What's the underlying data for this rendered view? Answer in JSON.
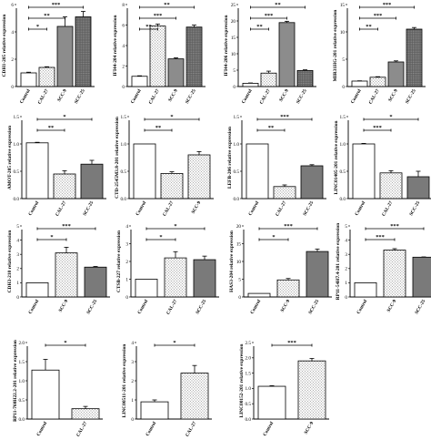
{
  "figure": {
    "colors": {
      "ink": "#000000",
      "background": "#ffffff"
    },
    "patterns": {
      "Control": "white",
      "CAL-27": "light-dots",
      "SCC-9_row1": "solid-gray",
      "SCC-9": "light-dots",
      "SCC-25_row1": "dense-dots",
      "SCC-25": "dark-gray"
    }
  },
  "chart_data": [
    {
      "type": "bar",
      "ylabel": "CDH1-205 relative expression",
      "categories": [
        "Control",
        "CAL-27",
        "SCC-9",
        "SCC-25"
      ],
      "values": [
        1.0,
        1.4,
        4.4,
        5.1
      ],
      "errors": [
        0.05,
        0.05,
        0.7,
        0.4
      ],
      "ylim": [
        0,
        6
      ],
      "yticks": [
        "0",
        "2",
        "4",
        "6"
      ],
      "brackets": [
        {
          "from": 0,
          "to": 1,
          "label": "*"
        },
        {
          "from": 0,
          "to": 2,
          "label": "**"
        },
        {
          "from": 0,
          "to": 3,
          "label": "***"
        }
      ]
    },
    {
      "type": "bar",
      "ylabel": "IFI44-204 relative expression",
      "categories": [
        "Control",
        "CAL-27",
        "SCC-9",
        "SCC-25"
      ],
      "values": [
        1.0,
        5.9,
        2.7,
        5.8
      ],
      "errors": [
        0.05,
        0.2,
        0.1,
        0.2
      ],
      "ylim": [
        0,
        8
      ],
      "yticks": [
        "0",
        "2",
        "4",
        "6",
        "8"
      ],
      "brackets": [
        {
          "from": 0,
          "to": 1,
          "label": "**"
        },
        {
          "from": 0,
          "to": 2,
          "label": "***"
        },
        {
          "from": 0,
          "to": 3,
          "label": "**"
        }
      ]
    },
    {
      "type": "bar",
      "ylabel": "IFI44-206 relative expression",
      "categories": [
        "Control",
        "CAL-27",
        "SCC-9",
        "SCC-25"
      ],
      "values": [
        1.0,
        4.1,
        19.5,
        4.9
      ],
      "errors": [
        0.1,
        0.6,
        0.4,
        0.2
      ],
      "ylim": [
        0,
        25
      ],
      "yticks": [
        "0",
        "5",
        "10",
        "15",
        "20",
        "25"
      ],
      "brackets": [
        {
          "from": 0,
          "to": 1,
          "label": "**"
        },
        {
          "from": 0,
          "to": 2,
          "label": "***"
        },
        {
          "from": 0,
          "to": 3,
          "label": "**"
        }
      ]
    },
    {
      "type": "bar",
      "ylabel": "MIR31HG-201 relative expression",
      "categories": [
        "Control",
        "CAL-27",
        "SCC-9",
        "SCC-25"
      ],
      "values": [
        1.0,
        1.7,
        4.5,
        10.5
      ],
      "errors": [
        0.05,
        0.1,
        0.2,
        0.3
      ],
      "ylim": [
        0,
        15
      ],
      "yticks": [
        "0",
        "5",
        "10",
        "15"
      ],
      "brackets": [
        {
          "from": 0,
          "to": 1,
          "label": "**"
        },
        {
          "from": 0,
          "to": 2,
          "label": "***"
        },
        {
          "from": 0,
          "to": 3,
          "label": "***"
        }
      ]
    },
    {
      "type": "bar",
      "ylabel": "AMOT-205 relative expression",
      "categories": [
        "Control",
        "CAL-27",
        "SCC-25"
      ],
      "values": [
        1.02,
        0.45,
        0.63
      ],
      "errors": [
        0.01,
        0.06,
        0.07
      ],
      "ylim": [
        0,
        1.5
      ],
      "yticks": [
        "0.0",
        "0.5",
        "1.0",
        "1.5"
      ],
      "brackets": [
        {
          "from": 0,
          "to": 1,
          "label": "**"
        },
        {
          "from": 0,
          "to": 2,
          "label": "*"
        }
      ]
    },
    {
      "type": "bar",
      "ylabel": "CTD-2545M3.8-201 relative expression",
      "categories": [
        "Control",
        "CAL-27",
        "SCC-9"
      ],
      "values": [
        1.0,
        0.46,
        0.8
      ],
      "errors": [
        0.0,
        0.03,
        0.06
      ],
      "ylim": [
        0,
        1.5
      ],
      "yticks": [
        "0.0",
        "0.5",
        "1.0",
        "1.5"
      ],
      "brackets": [
        {
          "from": 0,
          "to": 1,
          "label": "**"
        },
        {
          "from": 0,
          "to": 2,
          "label": "*"
        }
      ]
    },
    {
      "type": "bar",
      "ylabel": "LEFB-206 relative expression",
      "categories": [
        "Control",
        "CAL-27",
        "SCC-25"
      ],
      "values": [
        1.0,
        0.22,
        0.6
      ],
      "errors": [
        0.0,
        0.03,
        0.02
      ],
      "ylim": [
        0,
        1.5
      ],
      "yticks": [
        "0.0",
        "0.5",
        "1.0",
        "1.5"
      ],
      "brackets": [
        {
          "from": 0,
          "to": 1,
          "label": "**"
        },
        {
          "from": 0,
          "to": 2,
          "label": "***"
        }
      ]
    },
    {
      "type": "bar",
      "ylabel": "LINC01405-201 relative expression",
      "categories": [
        "Control",
        "CAL-27",
        "SCC-25"
      ],
      "values": [
        1.0,
        0.47,
        0.4
      ],
      "errors": [
        0.01,
        0.04,
        0.1
      ],
      "ylim": [
        0,
        1.5
      ],
      "yticks": [
        "0.0",
        "0.5",
        "1.0",
        "1.5"
      ],
      "brackets": [
        {
          "from": 0,
          "to": 1,
          "label": "***"
        },
        {
          "from": 0,
          "to": 2,
          "label": "*"
        }
      ]
    },
    {
      "type": "bar",
      "ylabel": "CDH3-210 relative expression",
      "categories": [
        "Control",
        "SCC-9",
        "SCC-25"
      ],
      "values": [
        1.0,
        3.1,
        2.1
      ],
      "errors": [
        0.0,
        0.4,
        0.05
      ],
      "ylim": [
        0,
        5
      ],
      "yticks": [
        "0",
        "1",
        "2",
        "3",
        "4",
        "5"
      ],
      "brackets": [
        {
          "from": 0,
          "to": 1,
          "label": "*"
        },
        {
          "from": 0,
          "to": 2,
          "label": "***"
        }
      ]
    },
    {
      "type": "bar",
      "ylabel": "CTSB-227 relative expression",
      "categories": [
        "Control",
        "CAL-27",
        "SCC-25"
      ],
      "values": [
        1.0,
        2.2,
        2.1
      ],
      "errors": [
        0.0,
        0.35,
        0.2
      ],
      "ylim": [
        0,
        4
      ],
      "yticks": [
        "0",
        "1",
        "2",
        "3",
        "4"
      ],
      "brackets": [
        {
          "from": 0,
          "to": 1,
          "label": "*"
        },
        {
          "from": 0,
          "to": 2,
          "label": "*"
        }
      ]
    },
    {
      "type": "bar",
      "ylabel": "HAS3-204 relative expression",
      "categories": [
        "Control",
        "SCC-9",
        "SCC-25"
      ],
      "values": [
        1.0,
        4.8,
        12.8
      ],
      "errors": [
        0.0,
        0.4,
        0.7
      ],
      "ylim": [
        0,
        20
      ],
      "yticks": [
        "0",
        "5",
        "10",
        "15",
        "20"
      ],
      "brackets": [
        {
          "from": 0,
          "to": 1,
          "label": "*"
        },
        {
          "from": 0,
          "to": 2,
          "label": "***"
        }
      ]
    },
    {
      "type": "bar",
      "ylabel": "RP11-54H7.4-201 relative expression",
      "categories": [
        "Control",
        "SCC-9",
        "SCC-25"
      ],
      "values": [
        1.0,
        3.3,
        2.8
      ],
      "errors": [
        0.0,
        0.1,
        0.02
      ],
      "ylim": [
        0,
        5
      ],
      "yticks": [
        "0",
        "1",
        "2",
        "3",
        "4",
        "5"
      ],
      "brackets": [
        {
          "from": 0,
          "to": 1,
          "label": "***"
        },
        {
          "from": 0,
          "to": 2,
          "label": "***"
        }
      ]
    },
    {
      "type": "bar",
      "ylabel": "RP11-760H22.2-201 relative expression",
      "categories": [
        "Control",
        "CAL-27"
      ],
      "values": [
        1.28,
        0.27
      ],
      "errors": [
        0.28,
        0.06
      ],
      "ylim": [
        0,
        2.0
      ],
      "yticks": [
        "0.0",
        "0.5",
        "1.0",
        "1.5",
        "2.0"
      ],
      "brackets": [
        {
          "from": 0,
          "to": 1,
          "label": "*"
        }
      ]
    },
    {
      "type": "bar",
      "ylabel": "LINC00511-201 relative expression",
      "categories": [
        "Control",
        "CAL-27"
      ],
      "values": [
        0.9,
        2.4
      ],
      "errors": [
        0.1,
        0.4
      ],
      "ylim": [
        0,
        4
      ],
      "yticks": [
        "0",
        "1",
        "2",
        "3",
        "4"
      ],
      "brackets": [
        {
          "from": 0,
          "to": 1,
          "label": "*"
        }
      ]
    },
    {
      "type": "bar",
      "ylabel": "LINC00152-201 relative expression",
      "categories": [
        "Control",
        "SCC-9"
      ],
      "values": [
        1.07,
        1.9
      ],
      "errors": [
        0.02,
        0.08
      ],
      "ylim": [
        0,
        2.5
      ],
      "yticks": [
        "0.0",
        "0.5",
        "1.0",
        "1.5",
        "2.0",
        "2.5"
      ],
      "brackets": [
        {
          "from": 0,
          "to": 1,
          "label": "***"
        }
      ]
    }
  ]
}
